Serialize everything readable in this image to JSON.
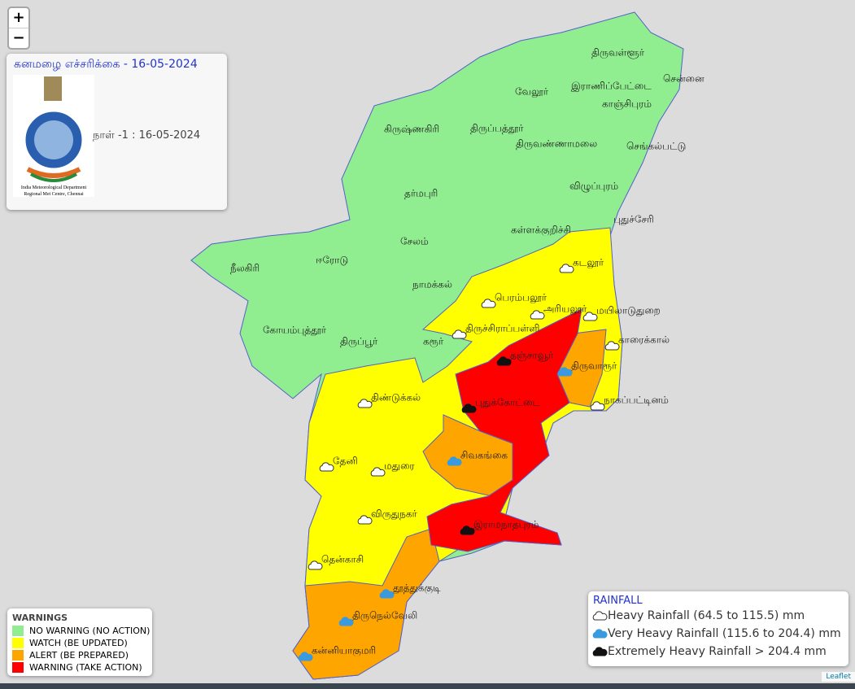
{
  "zoom": {
    "in": "+",
    "out": "−"
  },
  "header": {
    "title": "கனமழை எச்சரிக்கை - 16-05-2024",
    "day": "நாள் -1 : 16-05-2024",
    "logo_line1": "India Meteorological Department",
    "logo_line2": "Regional Met Centre, Chennai"
  },
  "districts": [
    "திருவள்ளூர்",
    "சென்னை",
    "இராணிப்பேட்டை",
    "வேலூர்",
    "காஞ்சிபுரம்",
    "கிருஷ்ணகிரி",
    "திருப்பத்தூர்",
    "திருவண்ணாமலை",
    "செங்கல்பட்டு",
    "தர்மபுரி",
    "விழுப்புரம்",
    "கள்ளக்குறிச்சி",
    "புதுச்சேரி",
    "நீலகிரி",
    "ஈரோடு",
    "சேலம்",
    "நாமக்கல்",
    "கடலூர்",
    "பெரம்பலூர்",
    "அரியலூர்",
    "மயிலாடுதுறை",
    "கோயம்புத்தூர்",
    "திருப்பூர்",
    "கரூர்",
    "திருச்சிராப்பள்ளி",
    "காரைக்கால்",
    "தஞ்சாவூர்",
    "திருவாரூர்",
    "திண்டுக்கல்",
    "நாகப்பட்டினம்",
    "புதுக்கோட்டை",
    "சிவகங்கை",
    "தேனி",
    "மதுரை",
    "விருதுநகர்",
    "இராமநாதபுரம்",
    "தென்காசி",
    "தூத்துக்குடி",
    "திருநெல்வேலி",
    "கன்னியாகுமரி"
  ],
  "warnings": {
    "title": "WARNINGS",
    "items": [
      {
        "label": "NO WARNING (NO ACTION)",
        "color": "#90ee90"
      },
      {
        "label": "WATCH (BE UPDATED)",
        "color": "#ffff00"
      },
      {
        "label": "ALERT (BE PREPARED)",
        "color": "#ffa500"
      },
      {
        "label": "WARNING (TAKE ACTION)",
        "color": "#ff0000"
      }
    ]
  },
  "rainfall": {
    "title": "RAINFALL",
    "items": [
      "Heavy Rainfall (64.5 to 115.5) mm",
      "Very Heavy Rainfall (115.6 to 204.4) mm",
      "Extremely Heavy Rainfall > 204.4 mm"
    ]
  },
  "attribution": "Leaflet"
}
